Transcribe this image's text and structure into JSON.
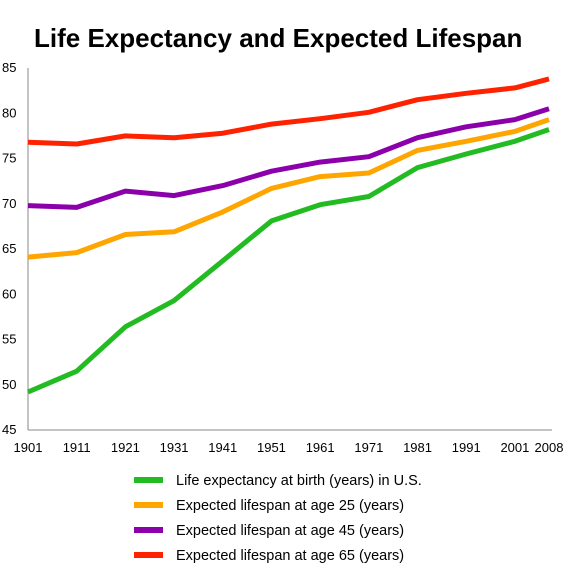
{
  "chart_data": {
    "type": "line",
    "title": "Life Expectancy and Expected Lifespan",
    "xlabel": "",
    "ylabel": "",
    "categories": [
      "1901",
      "1911",
      "1921",
      "1931",
      "1941",
      "1951",
      "1961",
      "1971",
      "1981",
      "1991",
      "2001",
      "2008"
    ],
    "x": [
      1901,
      1911,
      1921,
      1931,
      1941,
      1951,
      1961,
      1971,
      1981,
      1991,
      2001,
      2008
    ],
    "ylim": [
      45,
      85
    ],
    "yticks": [
      45,
      50,
      55,
      60,
      65,
      70,
      75,
      80,
      85
    ],
    "grid": false,
    "legend_position": "bottom",
    "series": [
      {
        "name": "Life expectancy at birth (years) in U.S.",
        "color": "#22bb22",
        "values": [
          49.2,
          51.5,
          56.4,
          59.3,
          63.7,
          68.1,
          69.9,
          70.8,
          74.0,
          75.5,
          76.9,
          78.2
        ]
      },
      {
        "name": "Expected lifespan at age 25 (years)",
        "color": "#ffa500",
        "values": [
          64.1,
          64.6,
          66.6,
          66.9,
          69.1,
          71.7,
          73.0,
          73.4,
          75.9,
          76.9,
          78.0,
          79.3
        ]
      },
      {
        "name": "Expected lifespan at age 45 (years)",
        "color": "#8b00aa",
        "values": [
          69.8,
          69.6,
          71.4,
          70.9,
          72.0,
          73.6,
          74.6,
          75.2,
          77.3,
          78.5,
          79.3,
          80.5
        ]
      },
      {
        "name": "Expected lifespan at age 65 (years)",
        "color": "#ff2200",
        "values": [
          76.8,
          76.6,
          77.5,
          77.3,
          77.8,
          78.8,
          79.4,
          80.1,
          81.5,
          82.2,
          82.8,
          83.8
        ]
      }
    ]
  }
}
